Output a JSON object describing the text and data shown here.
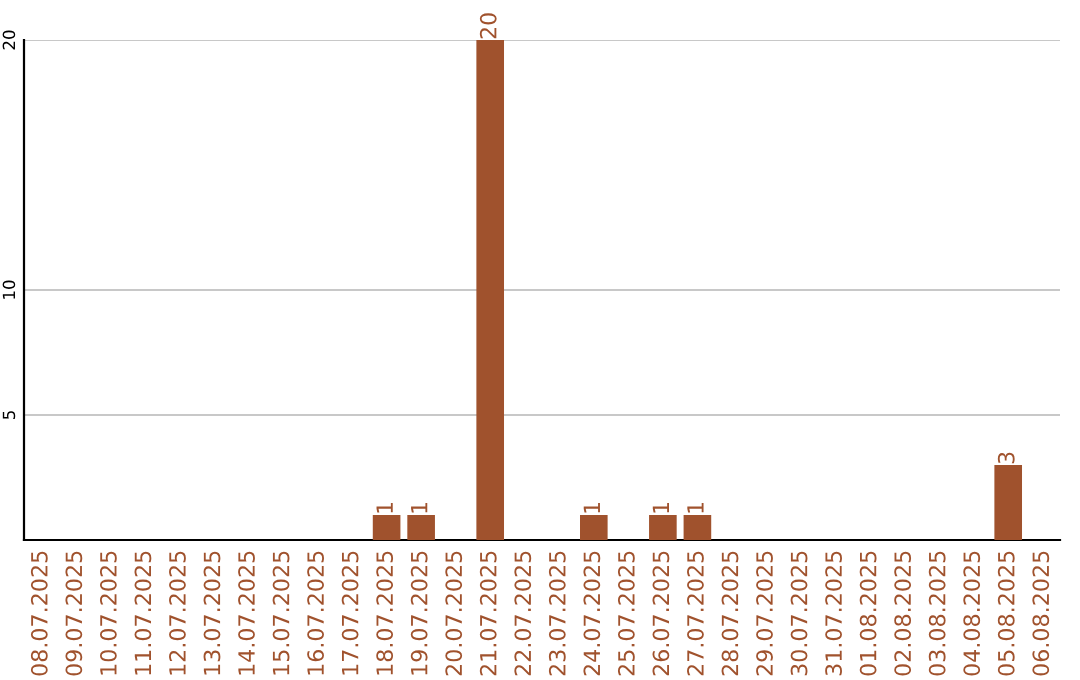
{
  "chart_data": {
    "type": "bar",
    "categories": [
      "08.07.2025",
      "09.07.2025",
      "10.07.2025",
      "11.07.2025",
      "12.07.2025",
      "13.07.2025",
      "14.07.2025",
      "15.07.2025",
      "16.07.2025",
      "17.07.2025",
      "18.07.2025",
      "19.07.2025",
      "20.07.2025",
      "21.07.2025",
      "22.07.2025",
      "23.07.2025",
      "24.07.2025",
      "25.07.2025",
      "26.07.2025",
      "27.07.2025",
      "28.07.2025",
      "29.07.2025",
      "30.07.2025",
      "31.07.2025",
      "01.08.2025",
      "02.08.2025",
      "03.08.2025",
      "04.08.2025",
      "05.08.2025",
      "06.08.2025"
    ],
    "values": [
      0,
      0,
      0,
      0,
      0,
      0,
      0,
      0,
      0,
      0,
      1,
      1,
      0,
      20,
      0,
      0,
      1,
      0,
      1,
      1,
      0,
      0,
      0,
      0,
      0,
      0,
      0,
      0,
      3,
      0
    ],
    "value_labels": [
      null,
      null,
      null,
      null,
      null,
      null,
      null,
      null,
      null,
      null,
      "1",
      "1",
      null,
      "20",
      null,
      null,
      "1",
      null,
      "1",
      "1",
      null,
      null,
      null,
      null,
      null,
      null,
      null,
      null,
      "3",
      null
    ],
    "color": "#a0522d",
    "ylim": [
      0,
      20
    ],
    "yticks": [
      5,
      10,
      20
    ],
    "grid": "y"
  }
}
